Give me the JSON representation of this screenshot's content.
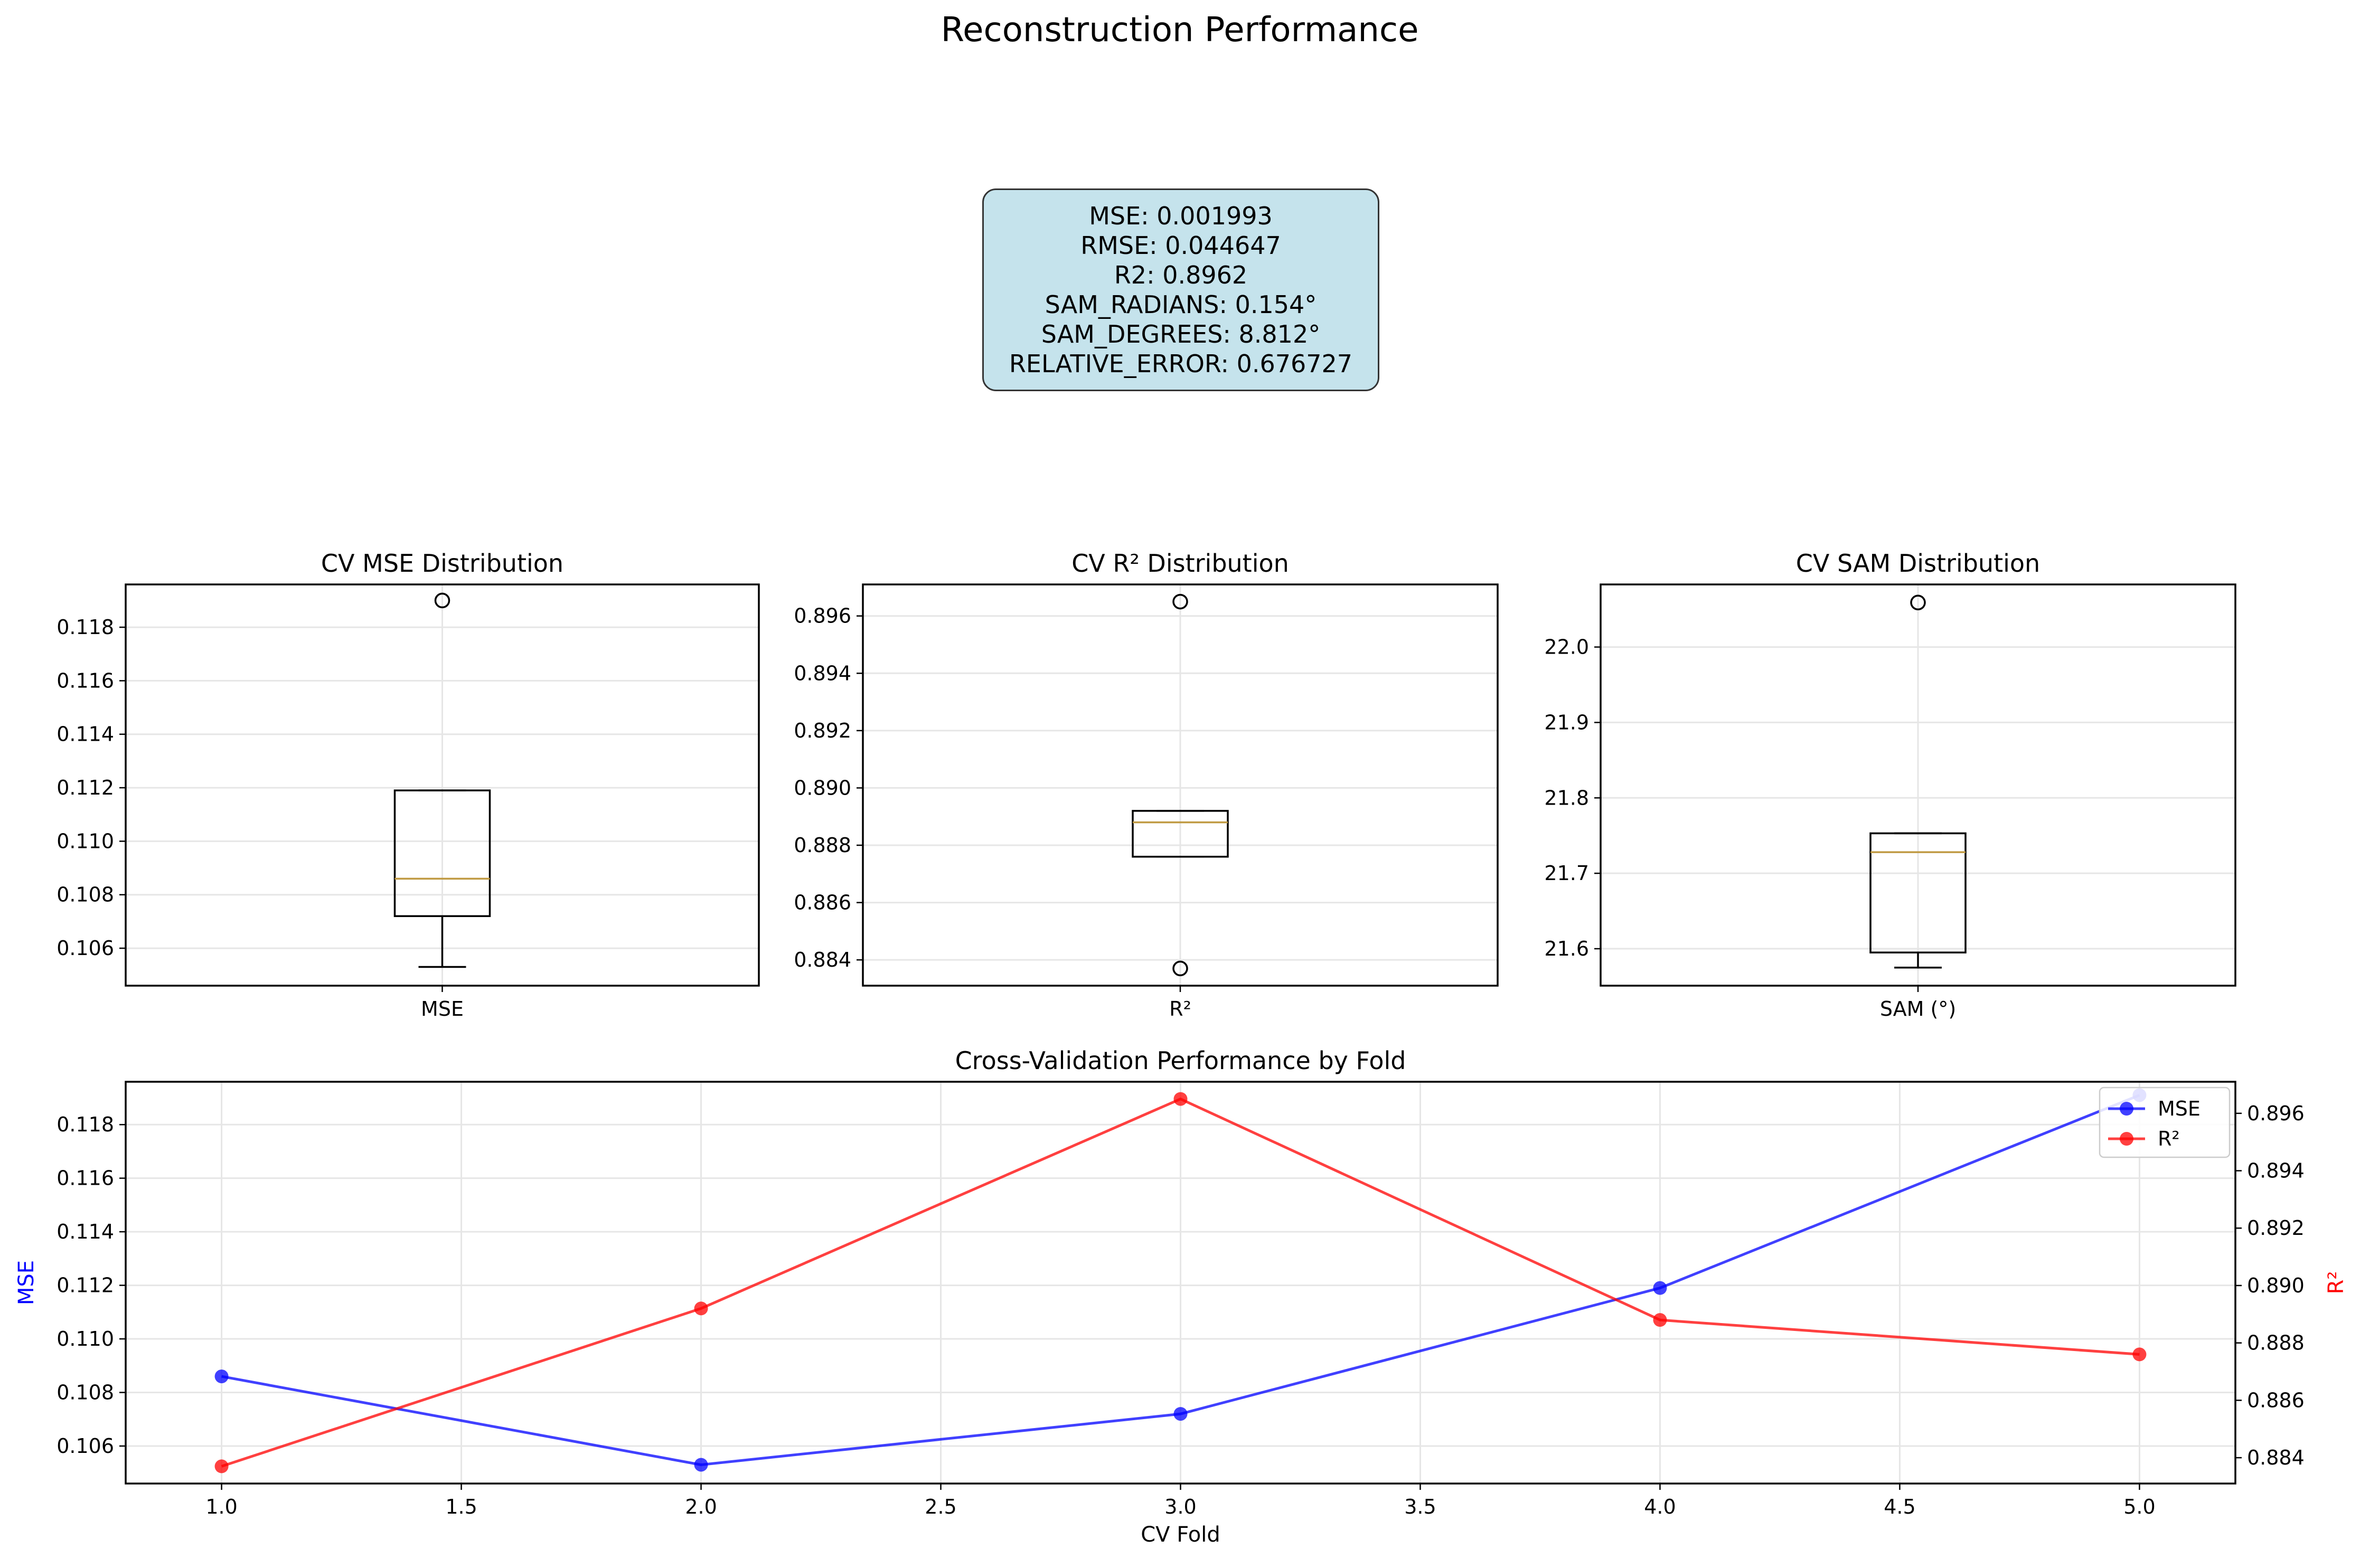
{
  "figure_title": "Reconstruction Performance",
  "metrics_box": {
    "lines": [
      "MSE: 0.001993",
      "RMSE: 0.044647",
      "R2: 0.8962",
      "SAM_RADIANS: 0.154°",
      "SAM_DEGREES: 8.812°",
      "RELATIVE_ERROR: 0.676727"
    ],
    "background": "#c5e3ec"
  },
  "chart_data": [
    {
      "type": "box",
      "title": "CV MSE Distribution",
      "xlabel": "",
      "categories": [
        "MSE"
      ],
      "ylim": [
        0.1046,
        0.1196
      ],
      "yticks": [
        0.106,
        0.108,
        0.11,
        0.112,
        0.114,
        0.116,
        0.118
      ],
      "ytick_labels": [
        "0.106",
        "0.108",
        "0.110",
        "0.112",
        "0.114",
        "0.116",
        "0.118"
      ],
      "whisker_low": 0.1053,
      "q1": 0.1072,
      "median": 0.1086,
      "q3": 0.1119,
      "whisker_high": 0.1119,
      "outliers": [
        0.119
      ],
      "grid": true
    },
    {
      "type": "box",
      "title": "CV R² Distribution",
      "xlabel": "",
      "categories": [
        "R²"
      ],
      "ylim": [
        0.8831,
        0.8971
      ],
      "yticks": [
        0.884,
        0.886,
        0.888,
        0.89,
        0.892,
        0.894,
        0.896
      ],
      "ytick_labels": [
        "0.884",
        "0.886",
        "0.888",
        "0.890",
        "0.892",
        "0.894",
        "0.896"
      ],
      "whisker_low": 0.8876,
      "q1": 0.8876,
      "median": 0.8888,
      "q3": 0.8892,
      "whisker_high": 0.8892,
      "outliers": [
        0.8965,
        0.8837
      ],
      "grid": true
    },
    {
      "type": "box",
      "title": "CV SAM Distribution",
      "xlabel": "",
      "categories": [
        "SAM (°)"
      ],
      "ylim": [
        21.551,
        22.083
      ],
      "yticks": [
        21.6,
        21.7,
        21.8,
        21.9,
        22.0
      ],
      "ytick_labels": [
        "21.6",
        "21.7",
        "21.8",
        "21.9",
        "22.0"
      ],
      "whisker_low": 21.575,
      "q1": 21.595,
      "median": 21.728,
      "q3": 21.753,
      "whisker_high": 21.753,
      "outliers": [
        22.059
      ],
      "grid": true
    },
    {
      "type": "line",
      "title": "Cross-Validation Performance by Fold",
      "xlabel": "CV Fold",
      "ylabel_left": "MSE",
      "ylabel_right": "R²",
      "x": [
        1.0,
        2.0,
        3.0,
        4.0,
        5.0
      ],
      "xlim": [
        0.8,
        5.2
      ],
      "xticks": [
        1.0,
        1.5,
        2.0,
        2.5,
        3.0,
        3.5,
        4.0,
        4.5,
        5.0
      ],
      "xtick_labels": [
        "1.0",
        "1.5",
        "2.0",
        "2.5",
        "3.0",
        "3.5",
        "4.0",
        "4.5",
        "5.0"
      ],
      "ylim_left": [
        0.1046,
        0.1196
      ],
      "yticks_left": [
        0.106,
        0.108,
        0.11,
        0.112,
        0.114,
        0.116,
        0.118
      ],
      "ytick_labels_left": [
        "0.106",
        "0.108",
        "0.110",
        "0.112",
        "0.114",
        "0.116",
        "0.118"
      ],
      "ylim_right": [
        0.8831,
        0.8971
      ],
      "yticks_right": [
        0.884,
        0.886,
        0.888,
        0.89,
        0.892,
        0.894,
        0.896
      ],
      "ytick_labels_right": [
        "0.884",
        "0.886",
        "0.888",
        "0.890",
        "0.892",
        "0.894",
        "0.896"
      ],
      "series": [
        {
          "name": "MSE",
          "axis": "left",
          "color": "#0000ff",
          "values": [
            0.1086,
            0.1053,
            0.1072,
            0.1119,
            0.1191
          ]
        },
        {
          "name": "R²",
          "axis": "right",
          "color": "#ff0000",
          "values": [
            0.8837,
            0.8892,
            0.8965,
            0.8888,
            0.8876
          ]
        }
      ],
      "legend": "top-right",
      "grid": true
    }
  ],
  "colors": {
    "median": "#c09a43",
    "grid": "#e6e6e6",
    "mse_line": "#0000ff",
    "r2_line": "#ff0000"
  }
}
